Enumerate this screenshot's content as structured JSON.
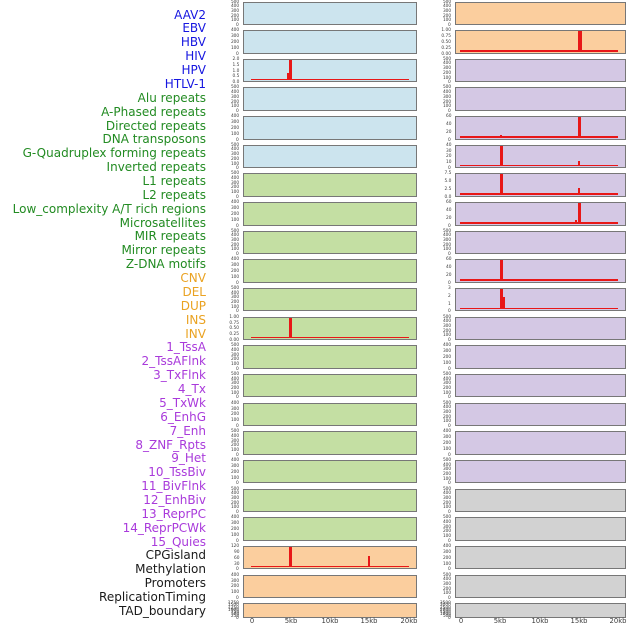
{
  "chart_data": {
    "type": "line",
    "title": "",
    "layout_note": "44 genomic feature density tracks shown as two columns of 22 small-multiple panels; labels listed down the left; red spikes mark signal at ~5kb and ~15kb",
    "x_axis": {
      "tick_labels": [
        "0",
        "5kb",
        "10kb",
        "15kb",
        "20kb"
      ],
      "range_kb": [
        0,
        20
      ]
    },
    "colors": {
      "label": {
        "virus": "#1616E0",
        "repeat": "#228B22",
        "sv": "#EAA221",
        "chromatin": "#A93ADB",
        "other": "#1A1A1A"
      },
      "panel_fill": {
        "virus": "#CCE4EE",
        "repeat": "#C4DFA3",
        "sv": "#FBCE9E",
        "chromatin": "#D4C8E4",
        "other": "#D2D2D2"
      },
      "panel_border": "#777777",
      "spike_red": "#E81717",
      "axis_text": "#3C3C3C"
    },
    "panels": [
      {
        "label": "AAV2",
        "group": "virus",
        "y_ticks": [
          "500",
          "400",
          "300",
          "200",
          "100",
          "0"
        ],
        "spikes": [],
        "baseline": false
      },
      {
        "label": "EBV",
        "group": "virus",
        "y_ticks": [
          "400",
          "300",
          "200",
          "100",
          "0"
        ],
        "spikes": [],
        "baseline": false
      },
      {
        "label": "HBV",
        "group": "virus",
        "y_ticks": [
          "2.0",
          "1.5",
          "1.0",
          "0.5",
          "0.0"
        ],
        "spikes": [
          {
            "x_kb": 4.87,
            "value": 2.0,
            "frac": 1.0,
            "w": 3
          },
          {
            "x_kb": 4.55,
            "value": 0.65,
            "frac": 0.33,
            "w": 1.5
          }
        ],
        "baseline": true
      },
      {
        "label": "HIV",
        "group": "virus",
        "y_ticks": [
          "500",
          "400",
          "300",
          "200",
          "100",
          "0"
        ],
        "spikes": [],
        "baseline": false
      },
      {
        "label": "HPV",
        "group": "virus",
        "y_ticks": [
          "400",
          "300",
          "200",
          "100",
          "0"
        ],
        "spikes": [],
        "baseline": false
      },
      {
        "label": "HTLV-1",
        "group": "virus",
        "y_ticks": [
          "500",
          "400",
          "300",
          "200",
          "100",
          "0"
        ],
        "spikes": [],
        "baseline": false
      },
      {
        "label": "Alu repeats",
        "group": "repeat",
        "y_ticks": [
          "500",
          "400",
          "300",
          "200",
          "100",
          "0"
        ],
        "spikes": [],
        "baseline": false
      },
      {
        "label": "A-Phased repeats",
        "group": "repeat",
        "y_ticks": [
          "400",
          "300",
          "200",
          "100",
          "0"
        ],
        "spikes": [],
        "baseline": false
      },
      {
        "label": "Directed repeats",
        "group": "repeat",
        "y_ticks": [
          "500",
          "400",
          "300",
          "200",
          "100",
          "0"
        ],
        "spikes": [],
        "baseline": false
      },
      {
        "label": "DNA transposons",
        "group": "repeat",
        "y_ticks": [
          "400",
          "300",
          "200",
          "100",
          "0"
        ],
        "spikes": [],
        "baseline": false
      },
      {
        "label": "G-Quadruplex forming repeats",
        "group": "repeat",
        "y_ticks": [
          "500",
          "400",
          "300",
          "200",
          "100",
          "0"
        ],
        "spikes": [],
        "baseline": false
      },
      {
        "label": "Inverted repeats",
        "group": "repeat",
        "y_ticks": [
          "1.00",
          "0.75",
          "0.50",
          "0.25",
          "0.00"
        ],
        "spikes": [
          {
            "x_kb": 4.87,
            "value": 1.0,
            "frac": 1.0,
            "w": 2.5
          }
        ],
        "baseline": true
      },
      {
        "label": "L1 repeats",
        "group": "repeat",
        "y_ticks": [
          "500",
          "400",
          "300",
          "200",
          "100",
          "0"
        ],
        "spikes": [],
        "baseline": false
      },
      {
        "label": "L2 repeats",
        "group": "repeat",
        "y_ticks": [
          "500",
          "400",
          "300",
          "200",
          "100",
          "0"
        ],
        "spikes": [],
        "baseline": false
      },
      {
        "label": "Low_complexity A/T rich regions",
        "group": "repeat",
        "y_ticks": [
          "400",
          "300",
          "200",
          "100",
          "0"
        ],
        "spikes": [],
        "baseline": false
      },
      {
        "label": "Microsatellites",
        "group": "repeat",
        "y_ticks": [
          "500",
          "400",
          "300",
          "200",
          "100",
          "0"
        ],
        "spikes": [],
        "baseline": false
      },
      {
        "label": "MIR repeats",
        "group": "repeat",
        "y_ticks": [
          "400",
          "300",
          "200",
          "100",
          "0"
        ],
        "spikes": [],
        "baseline": false
      },
      {
        "label": "Mirror repeats",
        "group": "repeat",
        "y_ticks": [
          "500",
          "400",
          "300",
          "200",
          "100",
          "0"
        ],
        "spikes": [],
        "baseline": false
      },
      {
        "label": "Z-DNA motifs",
        "group": "repeat",
        "y_ticks": [
          "400",
          "300",
          "200",
          "100",
          "0"
        ],
        "spikes": [],
        "baseline": false
      },
      {
        "label": "CNV",
        "group": "sv",
        "y_ticks": [
          "120",
          "90",
          "60",
          "30",
          "0"
        ],
        "spikes": [
          {
            "x_kb": 4.87,
            "value": 120,
            "frac": 1.0,
            "w": 3
          },
          {
            "x_kb": 14.85,
            "value": 70,
            "frac": 0.58,
            "w": 2.5
          }
        ],
        "baseline": true
      },
      {
        "label": "DEL",
        "group": "sv",
        "y_ticks": [
          "400",
          "300",
          "200",
          "100",
          "0"
        ],
        "spikes": [],
        "baseline": false
      },
      {
        "label": "DUP",
        "group": "sv",
        "y_ticks": [
          "1750",
          "1500",
          "1250",
          "1000",
          "750",
          "500",
          "250",
          "0"
        ],
        "spikes": [],
        "baseline": false
      },
      {
        "label": "INS",
        "group": "sv",
        "y_ticks": [
          "500",
          "400",
          "300",
          "200",
          "100",
          "0"
        ],
        "spikes": [],
        "baseline": false
      },
      {
        "label": "INV",
        "group": "sv",
        "y_ticks": [
          "1.00",
          "0.75",
          "0.50",
          "0.25",
          "0.00"
        ],
        "spikes": [
          {
            "x_kb": 15.0,
            "value": 1.0,
            "frac": 1.0,
            "w": 3.5
          }
        ],
        "baseline": true
      },
      {
        "label": "1_TssA",
        "group": "chromatin",
        "y_ticks": [
          "500",
          "400",
          "300",
          "200",
          "100",
          "0"
        ],
        "spikes": [],
        "baseline": false
      },
      {
        "label": "2_TssAFlnk",
        "group": "chromatin",
        "y_ticks": [
          "500",
          "400",
          "300",
          "200",
          "100",
          "0"
        ],
        "spikes": [],
        "baseline": false
      },
      {
        "label": "3_TxFlnk",
        "group": "chromatin",
        "y_ticks": [
          "60",
          "40",
          "20",
          "0"
        ],
        "spikes": [
          {
            "x_kb": 15.0,
            "value": 60,
            "frac": 1.0,
            "w": 3
          },
          {
            "x_kb": 5.0,
            "value": 6,
            "frac": 0.1,
            "w": 2
          }
        ],
        "baseline": true
      },
      {
        "label": "4_Tx",
        "group": "chromatin",
        "y_ticks": [
          "40",
          "30",
          "20",
          "10",
          "0"
        ],
        "spikes": [
          {
            "x_kb": 5.0,
            "value": 40,
            "frac": 1.0,
            "w": 3
          },
          {
            "x_kb": 14.9,
            "value": 10,
            "frac": 0.25,
            "w": 2.5
          }
        ],
        "baseline": true
      },
      {
        "label": "5_TxWk",
        "group": "chromatin",
        "y_ticks": [
          "7.5",
          "5.0",
          "2.5",
          "0.0"
        ],
        "spikes": [
          {
            "x_kb": 5.0,
            "value": 7.5,
            "frac": 1.0,
            "w": 2.5
          },
          {
            "x_kb": 14.9,
            "value": 2.4,
            "frac": 0.32,
            "w": 2.5
          }
        ],
        "baseline": true
      },
      {
        "label": "6_EnhG",
        "group": "chromatin",
        "y_ticks": [
          "60",
          "40",
          "20",
          "0"
        ],
        "spikes": [
          {
            "x_kb": 15.0,
            "value": 60,
            "frac": 1.0,
            "w": 3
          },
          {
            "x_kb": 14.55,
            "value": 9,
            "frac": 0.15,
            "w": 1.5
          },
          {
            "x_kb": 5.0,
            "value": 5,
            "frac": 0.08,
            "w": 2
          }
        ],
        "baseline": true
      },
      {
        "label": "7_Enh",
        "group": "chromatin",
        "y_ticks": [
          "500",
          "400",
          "300",
          "200",
          "100",
          "0"
        ],
        "spikes": [],
        "baseline": false
      },
      {
        "label": "8_ZNF_Rpts",
        "group": "chromatin",
        "y_ticks": [
          "60",
          "40",
          "20",
          "0"
        ],
        "spikes": [
          {
            "x_kb": 5.0,
            "value": 60,
            "frac": 1.0,
            "w": 3
          }
        ],
        "baseline": true
      },
      {
        "label": "9_Het",
        "group": "chromatin",
        "y_ticks": [
          "3",
          "2",
          "1",
          "0"
        ],
        "spikes": [
          {
            "x_kb": 5.0,
            "value": 3,
            "frac": 1.0,
            "w": 2.5
          },
          {
            "x_kb": 5.35,
            "value": 1.9,
            "frac": 0.62,
            "w": 1.5
          }
        ],
        "baseline": true
      },
      {
        "label": "10_TssBiv",
        "group": "chromatin",
        "y_ticks": [
          "500",
          "400",
          "300",
          "200",
          "100",
          "0"
        ],
        "spikes": [],
        "baseline": false
      },
      {
        "label": "11_BivFlnk",
        "group": "chromatin",
        "y_ticks": [
          "400",
          "300",
          "200",
          "100",
          "0"
        ],
        "spikes": [],
        "baseline": false
      },
      {
        "label": "12_EnhBiv",
        "group": "chromatin",
        "y_ticks": [
          "500",
          "400",
          "300",
          "200",
          "100",
          "0"
        ],
        "spikes": [],
        "baseline": false
      },
      {
        "label": "13_ReprPC",
        "group": "chromatin",
        "y_ticks": [
          "500",
          "400",
          "300",
          "200",
          "100",
          "0"
        ],
        "spikes": [],
        "baseline": false
      },
      {
        "label": "14_ReprPCWk",
        "group": "chromatin",
        "y_ticks": [
          "400",
          "300",
          "200",
          "100",
          "0"
        ],
        "spikes": [],
        "baseline": false
      },
      {
        "label": "15_Quies",
        "group": "chromatin",
        "y_ticks": [
          "500",
          "400",
          "300",
          "200",
          "100",
          "0"
        ],
        "spikes": [],
        "baseline": false
      },
      {
        "label": "CPGisland",
        "group": "other",
        "y_ticks": [
          "500",
          "400",
          "300",
          "200",
          "100",
          "0"
        ],
        "spikes": [],
        "baseline": false
      },
      {
        "label": "Methylation",
        "group": "other",
        "y_ticks": [
          "500",
          "400",
          "300",
          "200",
          "100",
          "0"
        ],
        "spikes": [],
        "baseline": false
      },
      {
        "label": "Promoters",
        "group": "other",
        "y_ticks": [
          "400",
          "300",
          "200",
          "100",
          "0"
        ],
        "spikes": [],
        "baseline": false
      },
      {
        "label": "ReplicationTiming",
        "group": "other",
        "y_ticks": [
          "500",
          "400",
          "300",
          "200",
          "100",
          "0"
        ],
        "spikes": [],
        "baseline": false
      },
      {
        "label": "TAD_boundary",
        "group": "other",
        "y_ticks": [
          "3500",
          "3000",
          "2500",
          "2000",
          "1500",
          "1000",
          "500",
          "0"
        ],
        "spikes": [],
        "baseline": false
      }
    ]
  }
}
